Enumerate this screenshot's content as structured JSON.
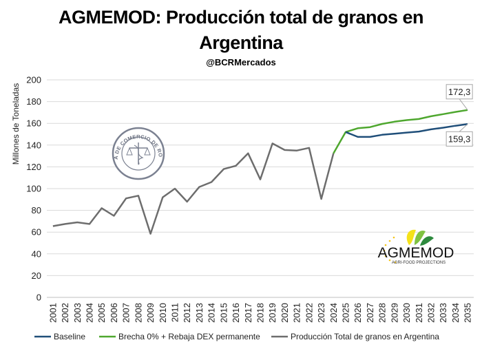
{
  "title_line1": "AGMEMOD: Producción total de granos en",
  "title_line2": "Argentina",
  "handle": "@BCRMercados",
  "logos": {
    "bcr_seal_text": "BOLSA DE COMERCIO DE ROSARIO",
    "agmemod_name": "AGMEMOD",
    "agmemod_sub": "AGRI-FOOD PROJECTIONS"
  },
  "colors": {
    "baseline": "#1f4e79",
    "scenario": "#4ea72e",
    "history": "#6d6d6d"
  },
  "chart_data": {
    "type": "line",
    "title": "AGMEMOD: Producción total de granos en Argentina",
    "ylabel": "Millones de Toneladas",
    "xlabel": "",
    "ylim": [
      0,
      200
    ],
    "yticks": [
      0,
      20,
      40,
      60,
      80,
      100,
      120,
      140,
      160,
      180,
      200
    ],
    "x": [
      "2001",
      "2002",
      "2003",
      "2004",
      "2005",
      "2006",
      "2007",
      "2008",
      "2009",
      "2010",
      "2011",
      "2012",
      "2013",
      "2014",
      "2015",
      "2016",
      "2017",
      "2018",
      "2019",
      "2020",
      "2021",
      "2022",
      "2023",
      "2024",
      "2025",
      "2026",
      "2027",
      "2028",
      "2029",
      "2030",
      "2031",
      "2032",
      "2033",
      "2034",
      "2035"
    ],
    "series": [
      {
        "name": "Baseline",
        "color": "#1f4e79",
        "points": [
          [
            "2025",
            152
          ],
          [
            "2026",
            147.5
          ],
          [
            "2027",
            147.5
          ],
          [
            "2028",
            149.5
          ],
          [
            "2029",
            150.5
          ],
          [
            "2030",
            151.5
          ],
          [
            "2031",
            152.5
          ],
          [
            "2032",
            154.5
          ],
          [
            "2033",
            156
          ],
          [
            "2034",
            157.8
          ],
          [
            "2035",
            159.3
          ]
        ]
      },
      {
        "name": "Brecha 0% + Rebaja DEX permanente",
        "color": "#4ea72e",
        "points": [
          [
            "2024",
            132.5
          ],
          [
            "2025",
            152
          ],
          [
            "2026",
            155.5
          ],
          [
            "2027",
            156.5
          ],
          [
            "2028",
            159.5
          ],
          [
            "2029",
            161.5
          ],
          [
            "2030",
            163
          ],
          [
            "2031",
            164
          ],
          [
            "2032",
            166.5
          ],
          [
            "2033",
            168.5
          ],
          [
            "2034",
            170.5
          ],
          [
            "2035",
            172.3
          ]
        ]
      },
      {
        "name": "Producción Total de granos en Argentina",
        "color": "#6d6d6d",
        "points": [
          [
            "2001",
            65.5
          ],
          [
            "2002",
            67.5
          ],
          [
            "2003",
            69
          ],
          [
            "2004",
            67.5
          ],
          [
            "2005",
            82
          ],
          [
            "2006",
            75
          ],
          [
            "2007",
            91
          ],
          [
            "2008",
            93.5
          ],
          [
            "2009",
            58.5
          ],
          [
            "2010",
            92
          ],
          [
            "2011",
            100
          ],
          [
            "2012",
            88
          ],
          [
            "2013",
            101.5
          ],
          [
            "2014",
            106
          ],
          [
            "2015",
            118
          ],
          [
            "2016",
            121
          ],
          [
            "2017",
            132.5
          ],
          [
            "2018",
            108.5
          ],
          [
            "2019",
            141.5
          ],
          [
            "2020",
            135.5
          ],
          [
            "2021",
            135
          ],
          [
            "2022",
            137.5
          ],
          [
            "2023",
            90.5
          ],
          [
            "2024",
            132.5
          ]
        ]
      }
    ],
    "annotations": [
      {
        "text": "172,3",
        "x": "2035",
        "y": 172.3
      },
      {
        "text": "159,3",
        "x": "2035",
        "y": 159.3
      }
    ],
    "legend_position": "bottom",
    "grid": "horizontal"
  }
}
